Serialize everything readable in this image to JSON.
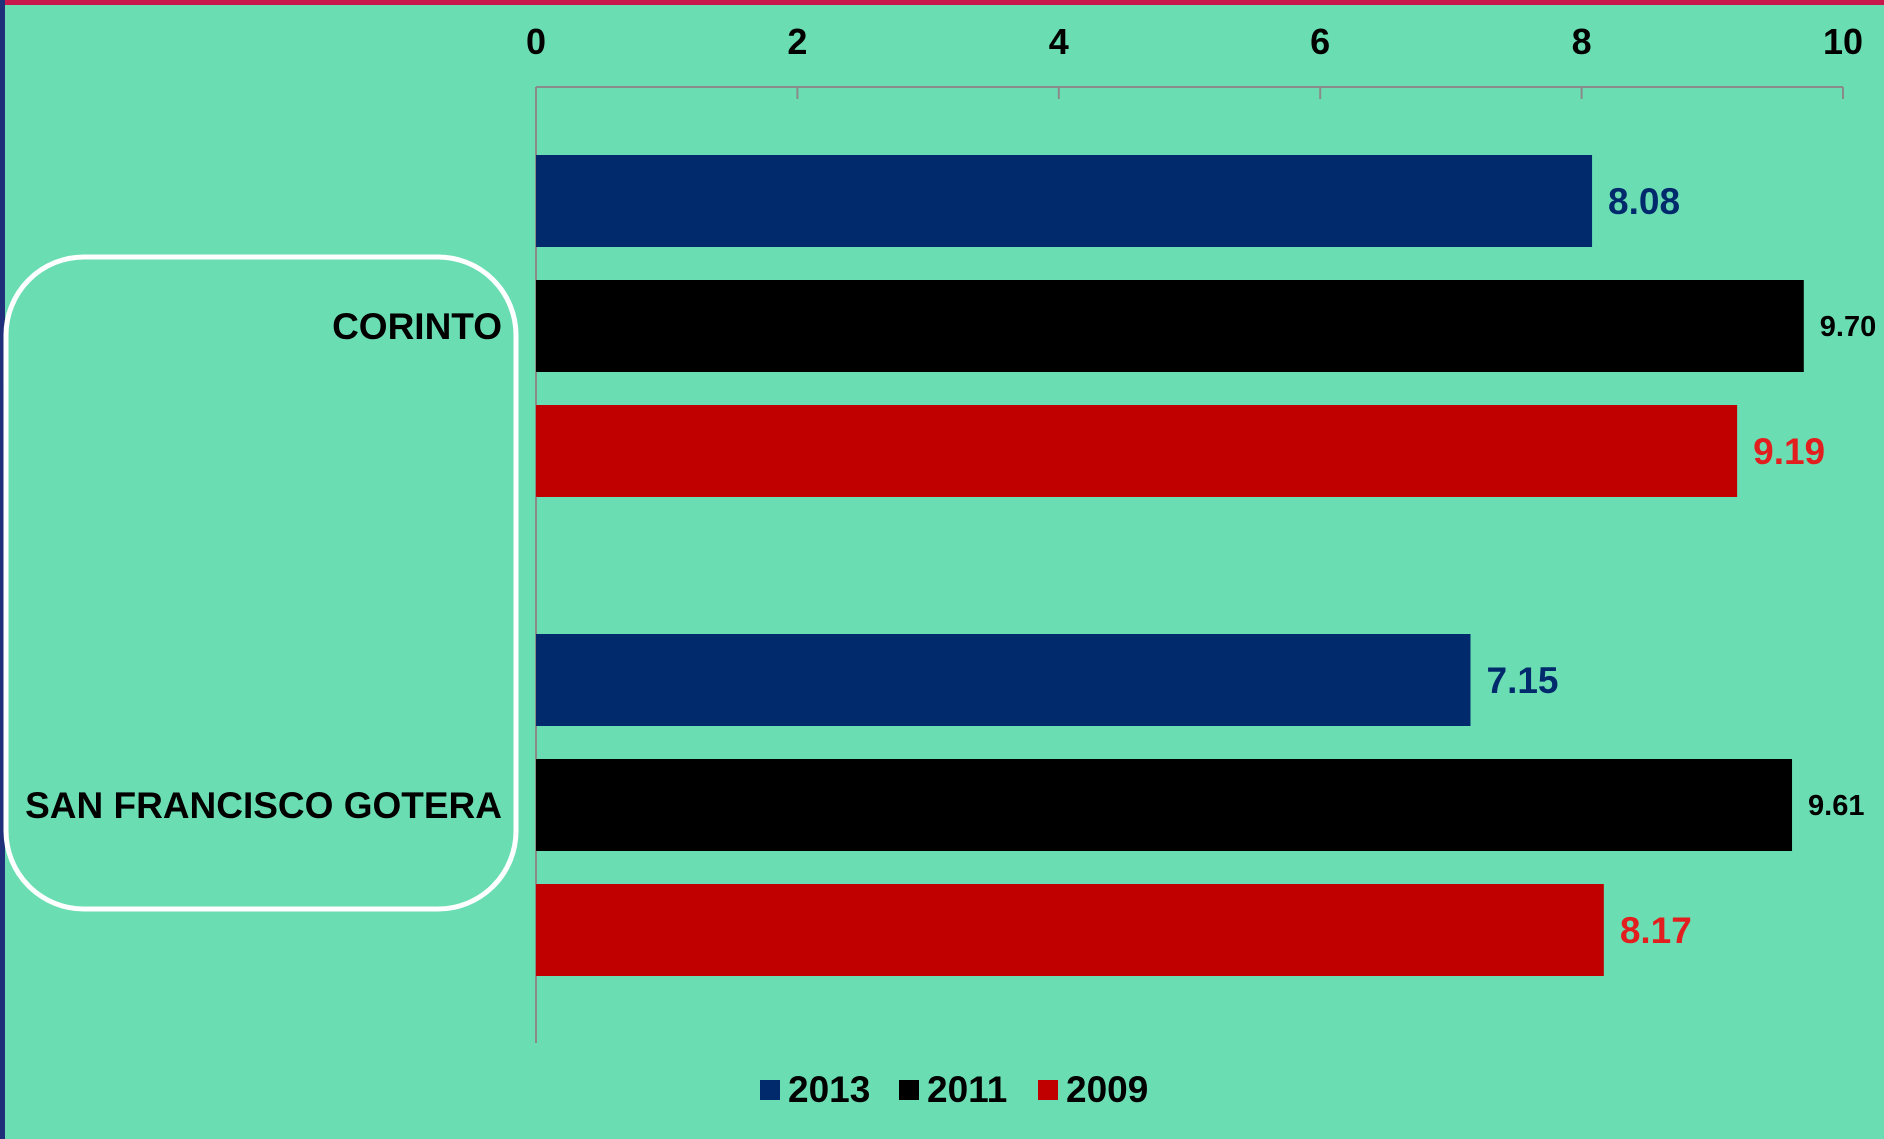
{
  "chart_data": {
    "type": "bar",
    "orientation": "horizontal",
    "categories": [
      "CORINTO",
      "SAN FRANCISCO GOTERA"
    ],
    "series": [
      {
        "name": "2013",
        "color": "#002A6C",
        "label_color": "#002A6C",
        "values": [
          8.08,
          7.15
        ],
        "labels": [
          "8.08",
          "7.15"
        ]
      },
      {
        "name": "2011",
        "color": "#000000",
        "label_color": "#000000",
        "values": [
          9.7,
          9.61
        ],
        "labels": [
          "9.70",
          "9.61"
        ]
      },
      {
        "name": "2009",
        "color": "#C00000",
        "label_color": "#E31E1E",
        "values": [
          9.19,
          8.17
        ],
        "labels": [
          "9.19",
          "8.17"
        ]
      }
    ],
    "xlim": [
      0,
      10
    ],
    "x_ticks": [
      "0",
      "2",
      "4",
      "6",
      "8",
      "10"
    ],
    "x_axis_position": "top",
    "legend_position": "bottom-center",
    "grid": false,
    "title": "",
    "xlabel": "",
    "ylabel": ""
  },
  "colors": {
    "background": "#6ADDB3",
    "top_rule": "#C8174A",
    "left_rule": "#1F2F7A",
    "highlight_box": "#FFFFFF"
  }
}
